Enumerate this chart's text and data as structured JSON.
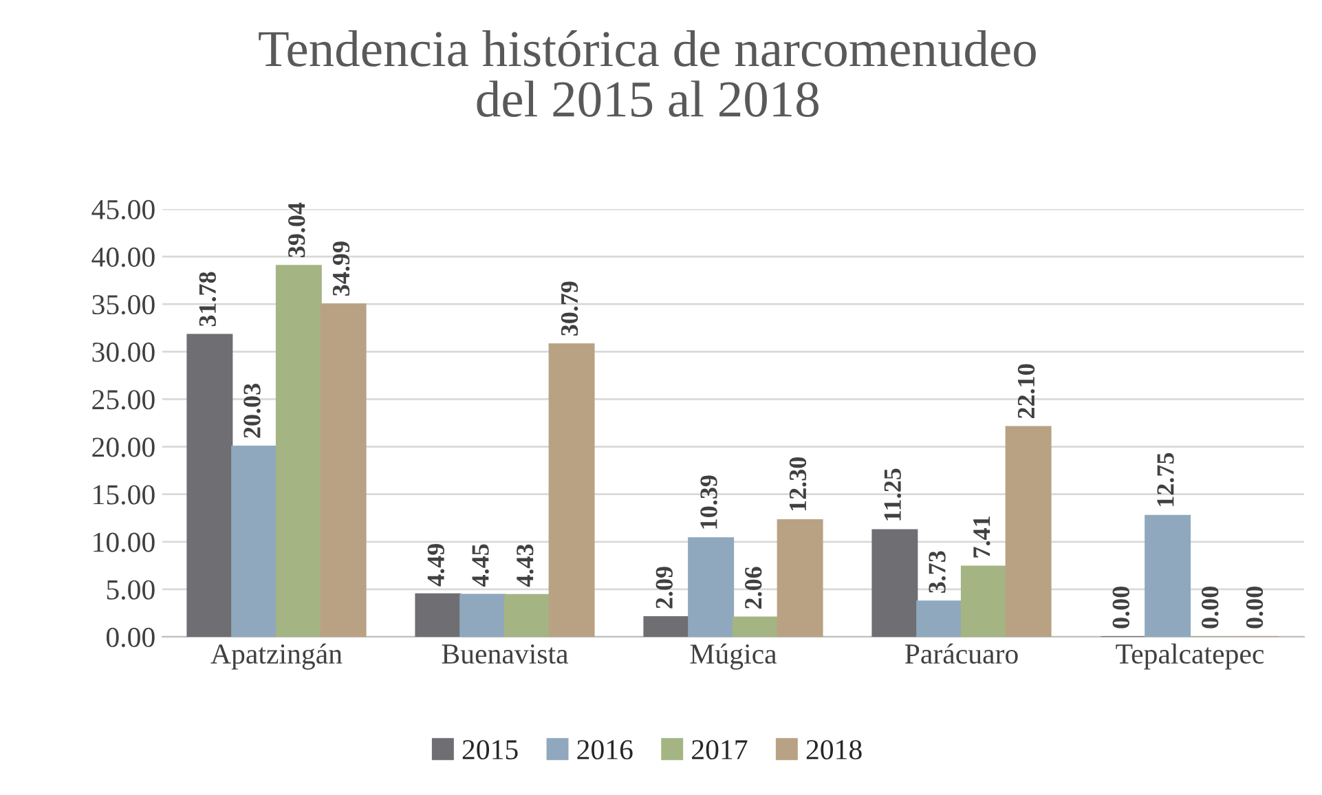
{
  "chart_data": {
    "type": "bar",
    "title": "Tendencia histórica de narcomenudeo\ndel 2015 al 2018",
    "categories": [
      "Apatzingán",
      "Buenavista",
      "Múgica",
      "Parácuaro",
      "Tepalcatepec"
    ],
    "series": [
      {
        "name": "2015",
        "color": "#6e6e73",
        "values": [
          31.78,
          4.49,
          2.09,
          11.25,
          0
        ],
        "value_labels": [
          "31.78",
          "4.49",
          "2.09",
          "11.25",
          "0.00"
        ]
      },
      {
        "name": "2016",
        "color": "#8fa8bd",
        "values": [
          20.03,
          4.45,
          10.39,
          3.73,
          12.75
        ],
        "value_labels": [
          "20.03",
          "4.45",
          "10.39",
          "3.73",
          "12.75"
        ]
      },
      {
        "name": "2017",
        "color": "#a4b583",
        "values": [
          39.04,
          4.43,
          2.06,
          7.41,
          0
        ],
        "value_labels": [
          "39.04",
          "4.43",
          "2.06",
          "7.41",
          "0.00"
        ]
      },
      {
        "name": "2018",
        "color": "#b9a283",
        "values": [
          34.99,
          30.79,
          12.3,
          22.1,
          0
        ],
        "value_labels": [
          "34.99",
          "30.79",
          "12.30",
          "22.10",
          "0.00"
        ]
      }
    ],
    "ylim": [
      0,
      45
    ],
    "yticks": [
      {
        "value": 0,
        "label": "0.00"
      },
      {
        "value": 5,
        "label": "5.00"
      },
      {
        "value": 10,
        "label": "10.00"
      },
      {
        "value": 15,
        "label": "15.00"
      },
      {
        "value": 20,
        "label": "20.00"
      },
      {
        "value": 25,
        "label": "25.00"
      },
      {
        "value": 30,
        "label": "30.00"
      },
      {
        "value": 35,
        "label": "35.00"
      },
      {
        "value": 40,
        "label": "40.00"
      },
      {
        "value": 45,
        "label": "45.00"
      }
    ],
    "grid": "y",
    "legend": "bottom"
  }
}
